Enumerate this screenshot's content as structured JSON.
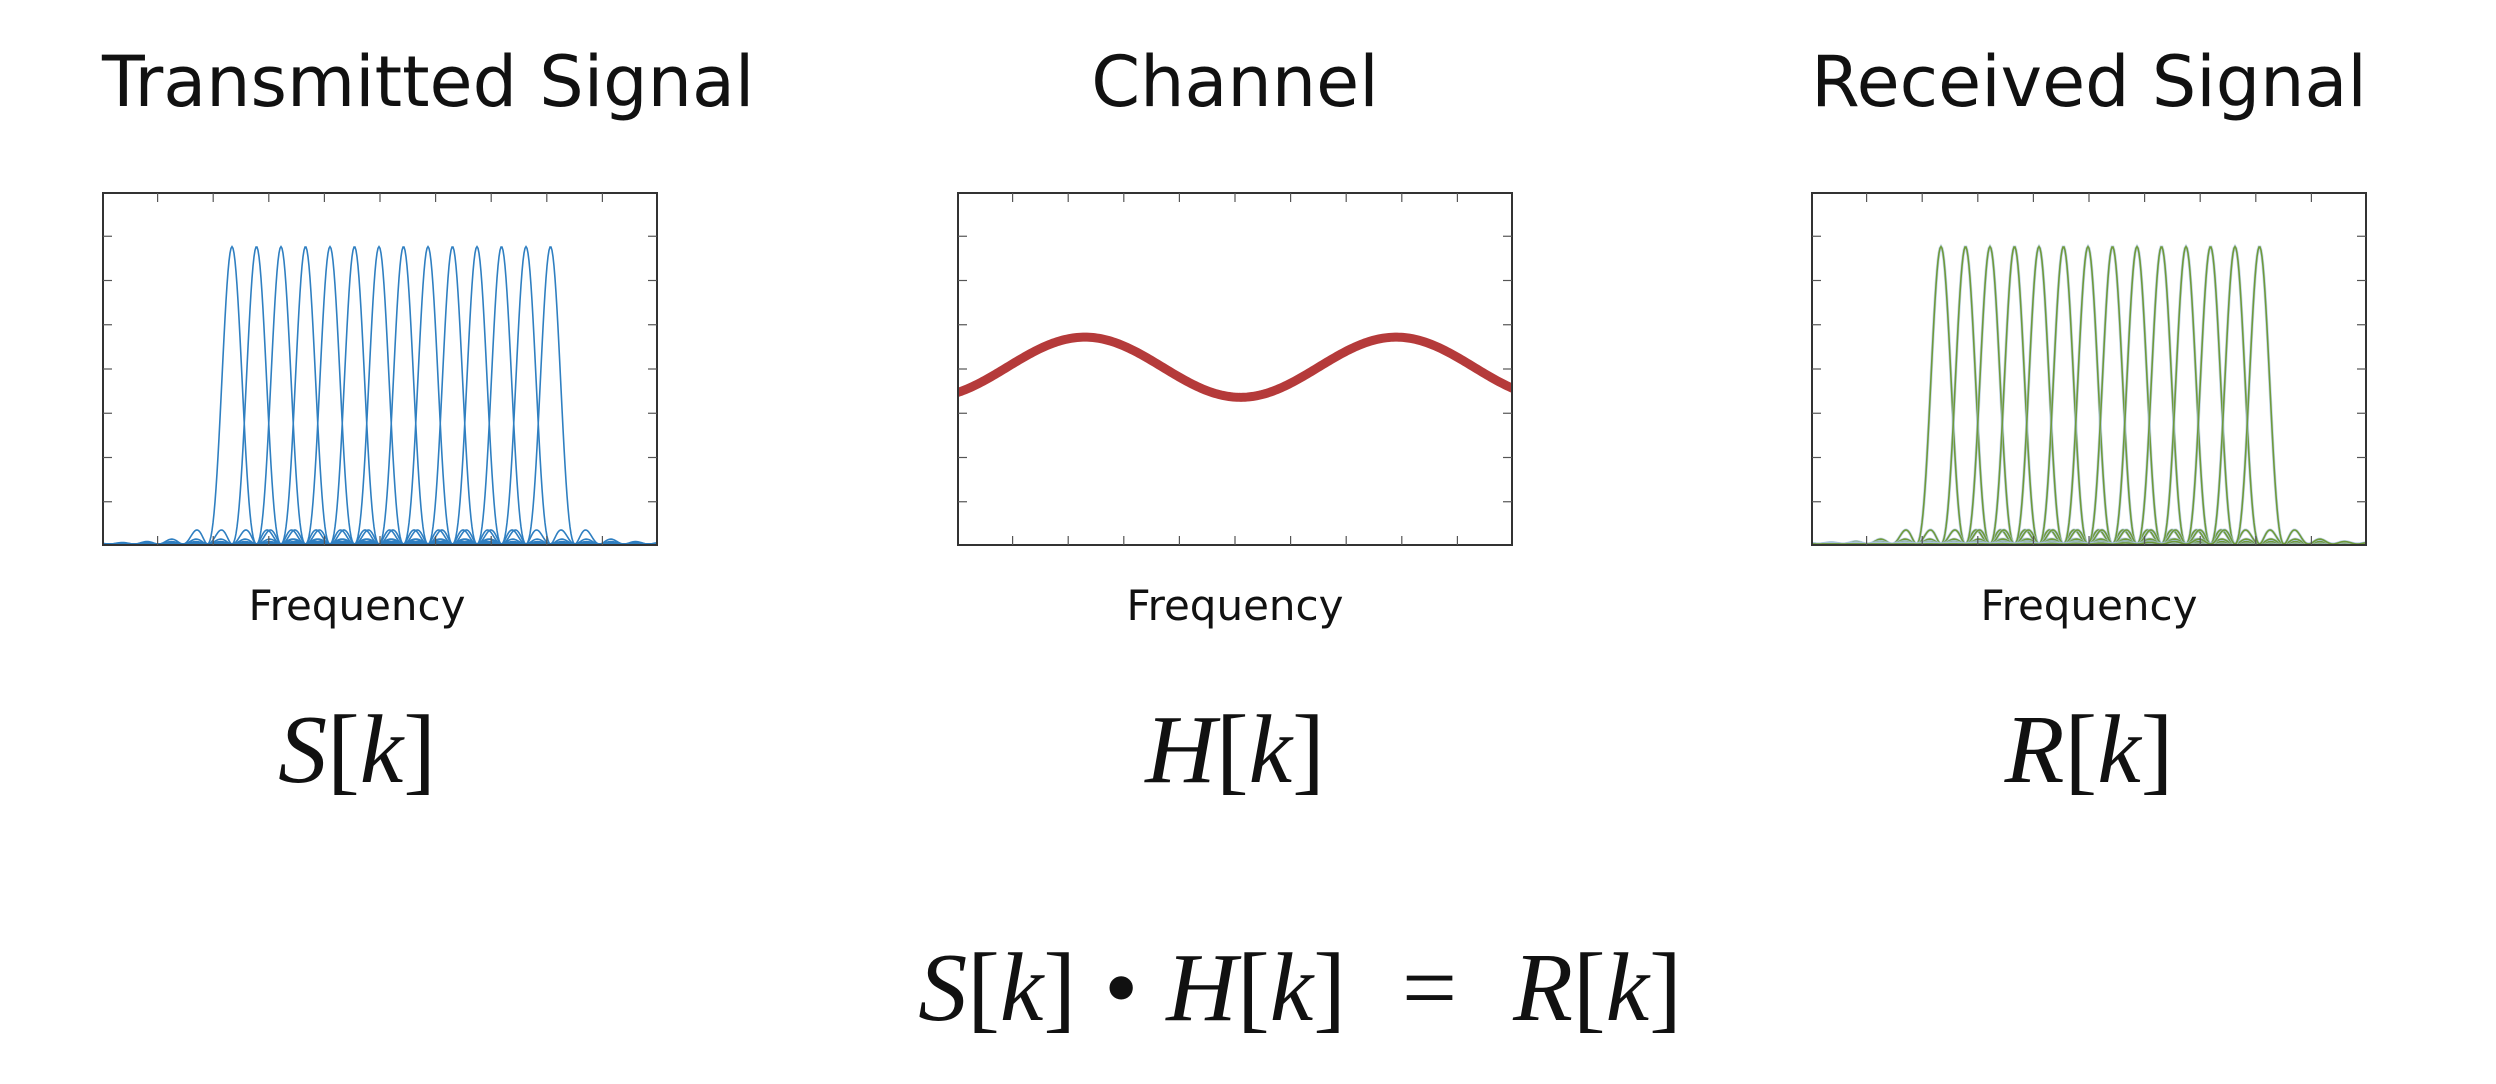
{
  "panels": [
    {
      "title": "Transmitted Signal",
      "xlabel": "Frequency",
      "var": "S",
      "color": "#2f7fc1",
      "halo": "#9ec4e4"
    },
    {
      "title": "Channel",
      "xlabel": "Frequency",
      "var": "H",
      "color": "#b53a3a"
    },
    {
      "title": "Received Signal",
      "xlabel": "Frequency",
      "var": "R",
      "color": "#6f9a3a",
      "halo": "#a9c4e0"
    }
  ],
  "symbols": {
    "index": "k",
    "open": "[",
    "close": "]",
    "dot": "•",
    "equals": "="
  },
  "chart_data": [
    {
      "type": "line",
      "title": "Transmitted Signal",
      "xlabel": "Frequency",
      "subcarriers": 14,
      "shape": "sinc-squared",
      "peak": 0.84,
      "grid": false
    },
    {
      "type": "line",
      "title": "Channel",
      "xlabel": "Frequency",
      "shape": "sinusoid",
      "peaks_at_x": [
        0.23,
        0.79
      ],
      "min_at_x": 0.51,
      "max_y": 0.59,
      "min_y": 0.42,
      "grid": false
    },
    {
      "type": "line",
      "title": "Received Signal",
      "xlabel": "Frequency",
      "subcarriers": 14,
      "shape": "sinc-squared",
      "peak": 0.84,
      "grid": false
    }
  ]
}
